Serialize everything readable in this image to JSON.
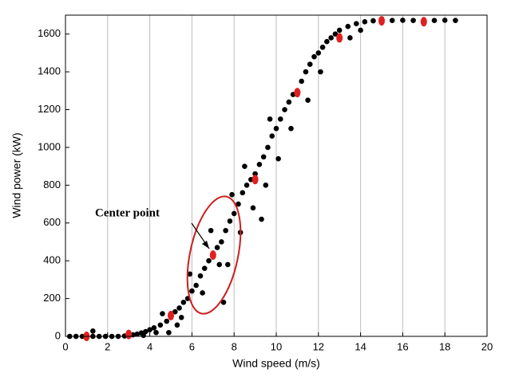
{
  "chart_data": {
    "type": "scatter",
    "x_label": "Wind speed (m/s)",
    "y_label": "Wind power (kW)",
    "annotation": "Center point",
    "xlim": [
      0,
      20
    ],
    "ylim": [
      0,
      1700
    ],
    "xticks": [
      0,
      2,
      4,
      6,
      8,
      10,
      12,
      14,
      16,
      18,
      20
    ],
    "yticks": [
      0,
      200,
      400,
      600,
      800,
      1000,
      1200,
      1400,
      1600
    ],
    "grid": "x",
    "series": [
      {
        "color": "#000000",
        "x": [
          0.2,
          0.5,
          0.8,
          1.0,
          1.3,
          1.6,
          1.9,
          2.2,
          2.5,
          2.8,
          3.0,
          3.2,
          3.4,
          3.6,
          3.8,
          4.0,
          4.2,
          3.7,
          4.5,
          4.3,
          4.8,
          5.0,
          5.2,
          4.6,
          5.4,
          5.6,
          5.8,
          5.5,
          6.0,
          6.2,
          6.4,
          5.9,
          6.6,
          6.8,
          7.0,
          7.2,
          6.5,
          7.4,
          7.6,
          7.3,
          7.8,
          8.0,
          8.2,
          7.5,
          7.7,
          8.4,
          8.6,
          8.8,
          8.3,
          9.0,
          9.2,
          9.4,
          8.9,
          9.6,
          9.8,
          10.0,
          9.5,
          10.2,
          10.4,
          10.6,
          10.1,
          10.8,
          11.0,
          11.2,
          10.7,
          11.4,
          11.6,
          11.8,
          11.5,
          12.0,
          12.2,
          12.4,
          12.1,
          12.6,
          12.8,
          13.0,
          13.4,
          13.8,
          14.2,
          14.6,
          15.0,
          15.5,
          16.0,
          16.5,
          17.0,
          17.5,
          18.0,
          18.5,
          13.5,
          14.0,
          9.7,
          8.5,
          7.9,
          6.9,
          1.3,
          9.3,
          4.9,
          5.3
        ],
        "values": [
          0,
          0,
          0,
          0,
          0,
          0,
          0,
          0,
          0,
          2,
          5,
          8,
          12,
          18,
          25,
          35,
          45,
          5,
          60,
          20,
          80,
          100,
          130,
          120,
          150,
          180,
          200,
          100,
          240,
          270,
          320,
          330,
          360,
          400,
          430,
          470,
          230,
          500,
          560,
          380,
          610,
          650,
          700,
          180,
          380,
          760,
          800,
          830,
          550,
          860,
          910,
          950,
          680,
          1000,
          1060,
          1100,
          800,
          1150,
          1200,
          1240,
          940,
          1280,
          1300,
          1350,
          1100,
          1400,
          1440,
          1480,
          1250,
          1500,
          1530,
          1560,
          1400,
          1580,
          1600,
          1620,
          1640,
          1655,
          1665,
          1670,
          1672,
          1672,
          1673,
          1672,
          1673,
          1672,
          1673,
          1672,
          1580,
          1620,
          1150,
          900,
          750,
          560,
          28,
          620,
          20,
          60
        ]
      },
      {
        "color": "#e02020",
        "x": [
          1,
          3,
          5,
          7,
          9,
          11,
          13,
          15,
          17
        ],
        "values": [
          0,
          10,
          110,
          430,
          830,
          1290,
          1580,
          1670,
          1665
        ]
      }
    ]
  }
}
